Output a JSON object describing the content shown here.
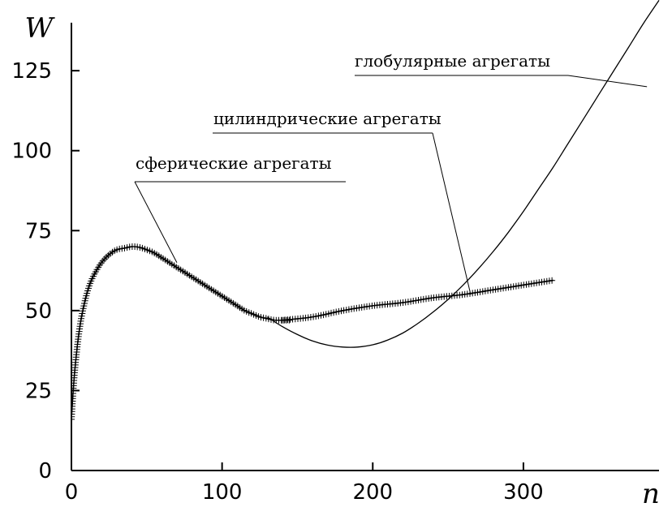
{
  "chart_data": {
    "type": "line",
    "title": "",
    "xlabel": "n",
    "ylabel": "W",
    "xlim": [
      0,
      390
    ],
    "ylim": [
      0,
      140
    ],
    "xticks": [
      0,
      100,
      200,
      300
    ],
    "yticks": [
      0,
      25,
      50,
      75,
      100,
      125
    ],
    "grid": false,
    "legend": "none",
    "series": [
      {
        "name": "сферические агрегаты",
        "marker": "plus",
        "x": [
          0,
          2,
          5,
          8,
          12,
          16,
          20,
          25,
          30,
          35,
          40,
          45,
          50,
          55,
          60,
          65,
          70,
          75,
          80,
          85,
          90,
          95,
          100,
          105,
          110,
          115,
          120,
          125,
          130,
          135,
          140,
          145
        ],
        "y": [
          16,
          30,
          43,
          51,
          58,
          62,
          65,
          67.5,
          69,
          69.5,
          70,
          69.8,
          69,
          68,
          66.5,
          65,
          63.5,
          62,
          60.5,
          59,
          57.5,
          56,
          54.5,
          53,
          51.5,
          50,
          49,
          48,
          47.5,
          47,
          47,
          47
        ]
      },
      {
        "name": "цилиндрические агрегаты",
        "marker": "plus",
        "x": [
          140,
          160,
          180,
          200,
          220,
          240,
          260,
          280,
          300,
          320
        ],
        "y": [
          47,
          48,
          50,
          51.5,
          52.5,
          54,
          55,
          56.5,
          58,
          59.5
        ]
      },
      {
        "name": "глобулярные агрегаты",
        "marker": "none",
        "x": [
          130,
          140,
          150,
          160,
          170,
          180,
          190,
          200,
          210,
          220,
          230,
          240,
          250,
          260,
          270,
          280,
          290,
          300,
          310,
          320,
          330,
          340,
          350,
          360,
          370,
          380,
          390
        ],
        "y": [
          48,
          45,
          42.5,
          40.5,
          39.2,
          38.6,
          38.6,
          39.3,
          40.8,
          43,
          46,
          49.5,
          53.5,
          58,
          63,
          68.5,
          74.5,
          81,
          88,
          95,
          102.5,
          110,
          117.5,
          125,
          132.5,
          140,
          147
        ]
      }
    ],
    "annotations": [
      {
        "text": "глобулярные агрегаты",
        "target_series": 2,
        "target": [
          382,
          120
        ]
      },
      {
        "text": "цилиндрические агрегаты",
        "target_series": 1,
        "target": [
          265,
          55
        ]
      },
      {
        "text": "сферические агрегаты",
        "target_series": 0,
        "target": [
          70,
          65
        ]
      }
    ]
  }
}
